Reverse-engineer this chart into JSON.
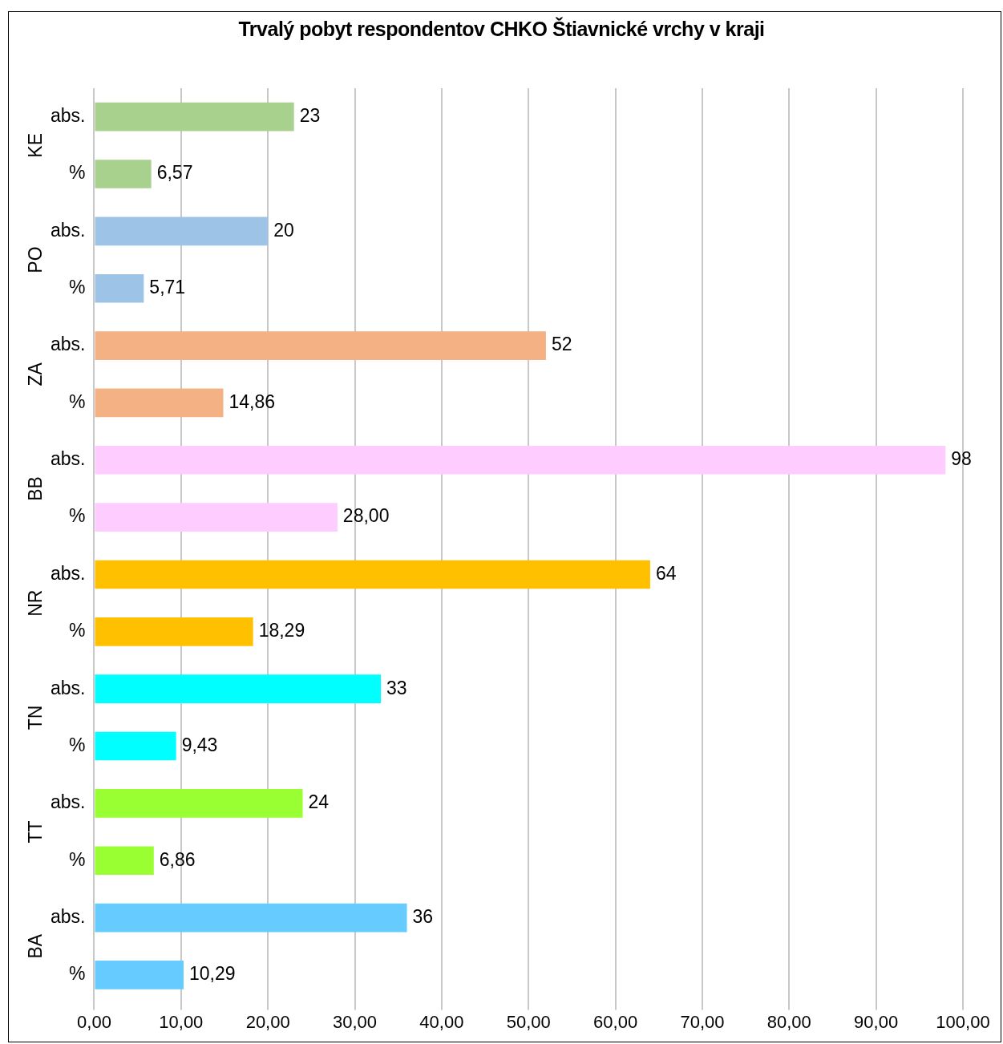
{
  "chart_data": {
    "type": "bar",
    "orientation": "horizontal",
    "title": "Trvalý pobyt respondentov CHKO Štiavnické vrchy v kraji",
    "categories": [
      "abs.",
      "%",
      "abs.",
      "%",
      "abs.",
      "%",
      "abs.",
      "%",
      "abs.",
      "%",
      "abs.",
      "%",
      "abs.",
      "%",
      "abs.",
      "%"
    ],
    "values": [
      23,
      6.57,
      20,
      5.71,
      52,
      14.86,
      98,
      28,
      64,
      18.29,
      33,
      9.43,
      24,
      6.86,
      36,
      10.29
    ],
    "value_labels": [
      "23",
      "6,57",
      "20",
      "5,71",
      "52",
      "14,86",
      "98",
      "28,00",
      "64",
      "18,29",
      "33",
      "9,43",
      "24",
      "6,86",
      "36",
      "10,29"
    ],
    "colors": [
      "#a9d18e",
      "#a9d18e",
      "#9dc3e6",
      "#9dc3e6",
      "#f4b183",
      "#f4b183",
      "#ffccff",
      "#ffccff",
      "#ffc000",
      "#ffc000",
      "#00ffff",
      "#00ffff",
      "#99ff33",
      "#99ff33",
      "#66ccff",
      "#66ccff"
    ],
    "annotations": [
      "KE",
      "PO",
      "ZA",
      "BB",
      "NR",
      "TN",
      "TT",
      "BA"
    ],
    "xlim": [
      0,
      100
    ],
    "xticks": [
      {
        "value": 0,
        "label": "0,00"
      },
      {
        "value": 10,
        "label": "10,00"
      },
      {
        "value": 20,
        "label": "20,00"
      },
      {
        "value": 30,
        "label": "30,00"
      },
      {
        "value": 40,
        "label": "40,00"
      },
      {
        "value": 50,
        "label": "50,00"
      },
      {
        "value": 60,
        "label": "60,00"
      },
      {
        "value": 70,
        "label": "70,00"
      },
      {
        "value": 80,
        "label": "80,00"
      },
      {
        "value": 90,
        "label": "90,00"
      },
      {
        "value": 100,
        "label": "100,00"
      }
    ],
    "grid": "x",
    "legend": false
  }
}
